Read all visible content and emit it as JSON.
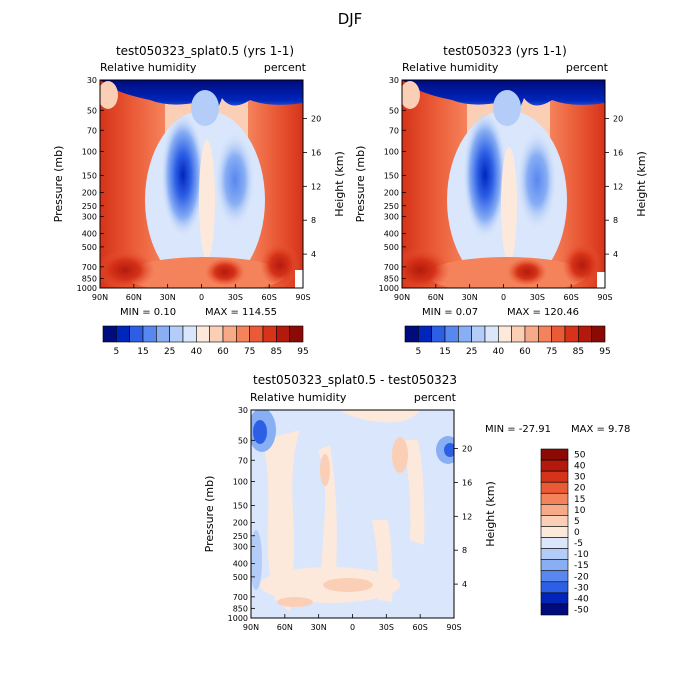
{
  "figure": {
    "title": "DJF"
  },
  "colors": {
    "abs_scale": [
      "#000b7e",
      "#0025bb",
      "#2d5fe6",
      "#5887f0",
      "#88aef4",
      "#b4cdf8",
      "#d9e6fb",
      "#fde8dc",
      "#fbcfb6",
      "#f7aa88",
      "#f4835c",
      "#ea5a36",
      "#d63319",
      "#b31a0d",
      "#8b0a05"
    ],
    "diff_scale": [
      "#000b7e",
      "#0025bb",
      "#2d5fe6",
      "#5887f0",
      "#88aef4",
      "#b4cdf8",
      "#d9e6fb",
      "#fde8dc",
      "#fbcfb6",
      "#f7aa88",
      "#f4835c",
      "#ea5a36",
      "#d63319",
      "#b31a0d",
      "#8b0a05"
    ]
  },
  "chart_data": [
    {
      "id": "top-left",
      "type": "heatmap",
      "title": "test050323_splat0.5 (yrs 1-1)",
      "left_label": "Relative humidity",
      "right_label": "percent",
      "ylabel": "Pressure (mb)",
      "ylabel_right": "Height (km)",
      "x_ticks": [
        "90N",
        "60N",
        "30N",
        "0",
        "30S",
        "60S",
        "90S"
      ],
      "y_ticks": [
        "30",
        "50",
        "70",
        "100",
        "150",
        "200",
        "250",
        "300",
        "400",
        "500",
        "700",
        "850",
        "1000"
      ],
      "height_ticks": [
        "20",
        "16",
        "12",
        "8",
        "4"
      ],
      "min_text": "MIN =   0.10",
      "max_text": "MAX = 114.55",
      "colorbar_labels": [
        "5",
        "15",
        "25",
        "40",
        "60",
        "75",
        "85",
        "95"
      ]
    },
    {
      "id": "top-right",
      "type": "heatmap",
      "title": "test050323 (yrs 1-1)",
      "left_label": "Relative humidity",
      "right_label": "percent",
      "ylabel": "Pressure (mb)",
      "ylabel_right": "Height (km)",
      "x_ticks": [
        "90N",
        "60N",
        "30N",
        "0",
        "30S",
        "60S",
        "90S"
      ],
      "y_ticks": [
        "30",
        "50",
        "70",
        "100",
        "150",
        "200",
        "250",
        "300",
        "400",
        "500",
        "700",
        "850",
        "1000"
      ],
      "height_ticks": [
        "20",
        "16",
        "12",
        "8",
        "4"
      ],
      "min_text": "MIN =   0.07",
      "max_text": "MAX = 120.46",
      "colorbar_labels": [
        "5",
        "15",
        "25",
        "40",
        "60",
        "75",
        "85",
        "95"
      ]
    },
    {
      "id": "bottom",
      "type": "heatmap",
      "title": "test050323_splat0.5 - test050323",
      "left_label": "Relative humidity",
      "right_label": "percent",
      "ylabel": "Pressure (mb)",
      "ylabel_right": "Height (km)",
      "x_ticks": [
        "90N",
        "60N",
        "30N",
        "0",
        "30S",
        "60S",
        "90S"
      ],
      "y_ticks": [
        "30",
        "50",
        "70",
        "100",
        "150",
        "200",
        "250",
        "300",
        "400",
        "500",
        "700",
        "850",
        "1000"
      ],
      "height_ticks": [
        "20",
        "16",
        "12",
        "8",
        "4"
      ],
      "min_text": "MIN = -27.91",
      "max_text": "MAX =   9.78",
      "colorbar_labels": [
        "50",
        "40",
        "30",
        "20",
        "15",
        "10",
        "5",
        "0",
        "-5",
        "-10",
        "-15",
        "-20",
        "-30",
        "-40",
        "-50"
      ]
    }
  ]
}
